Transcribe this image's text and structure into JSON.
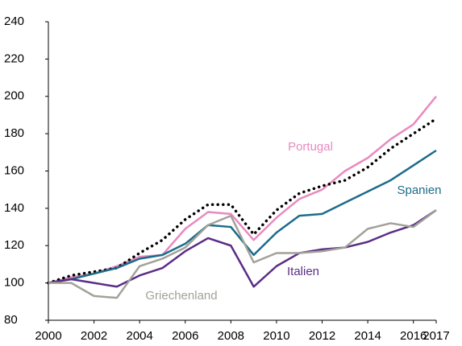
{
  "chart_data": {
    "type": "line",
    "x": [
      2000,
      2001,
      2002,
      2003,
      2004,
      2005,
      2006,
      2007,
      2008,
      2009,
      2010,
      2011,
      2012,
      2013,
      2014,
      2015,
      2016,
      2017
    ],
    "xlim": [
      2000,
      2017
    ],
    "xticks": [
      2000,
      2002,
      2004,
      2006,
      2008,
      2010,
      2012,
      2014,
      2016,
      2017
    ],
    "ylim": [
      80,
      240
    ],
    "yticks": [
      80,
      100,
      120,
      140,
      160,
      180,
      200,
      220,
      240
    ],
    "grid": false,
    "series": [
      {
        "name": "Portugal",
        "color": "#e88ac0",
        "values": [
          100,
          103,
          105,
          109,
          114,
          115,
          129,
          138,
          137,
          123,
          135,
          145,
          150,
          160,
          167,
          177,
          185,
          200
        ]
      },
      {
        "color": "#000000",
        "dashed": true,
        "values": [
          100,
          104,
          106,
          108,
          116,
          123,
          134,
          142,
          142,
          126,
          139,
          148,
          152,
          155,
          162,
          172,
          180,
          188
        ]
      },
      {
        "name": "Spanien",
        "color": "#1b6c8a",
        "values": [
          100,
          102,
          105,
          108,
          113,
          115,
          121,
          131,
          130,
          115,
          127,
          136,
          137,
          143,
          149,
          155,
          163,
          171
        ]
      },
      {
        "name": "Italien",
        "color": "#5b2d86",
        "values": [
          100,
          102,
          100,
          98,
          104,
          108,
          117,
          124,
          120,
          98,
          109,
          116,
          118,
          119,
          122,
          127,
          131,
          139
        ]
      },
      {
        "name": "Griechenland",
        "color": "#a3a199",
        "values": [
          100,
          100,
          93,
          92,
          109,
          113,
          119,
          131,
          136,
          111,
          116,
          116,
          117,
          119,
          129,
          132,
          130,
          139
        ]
      }
    ]
  }
}
